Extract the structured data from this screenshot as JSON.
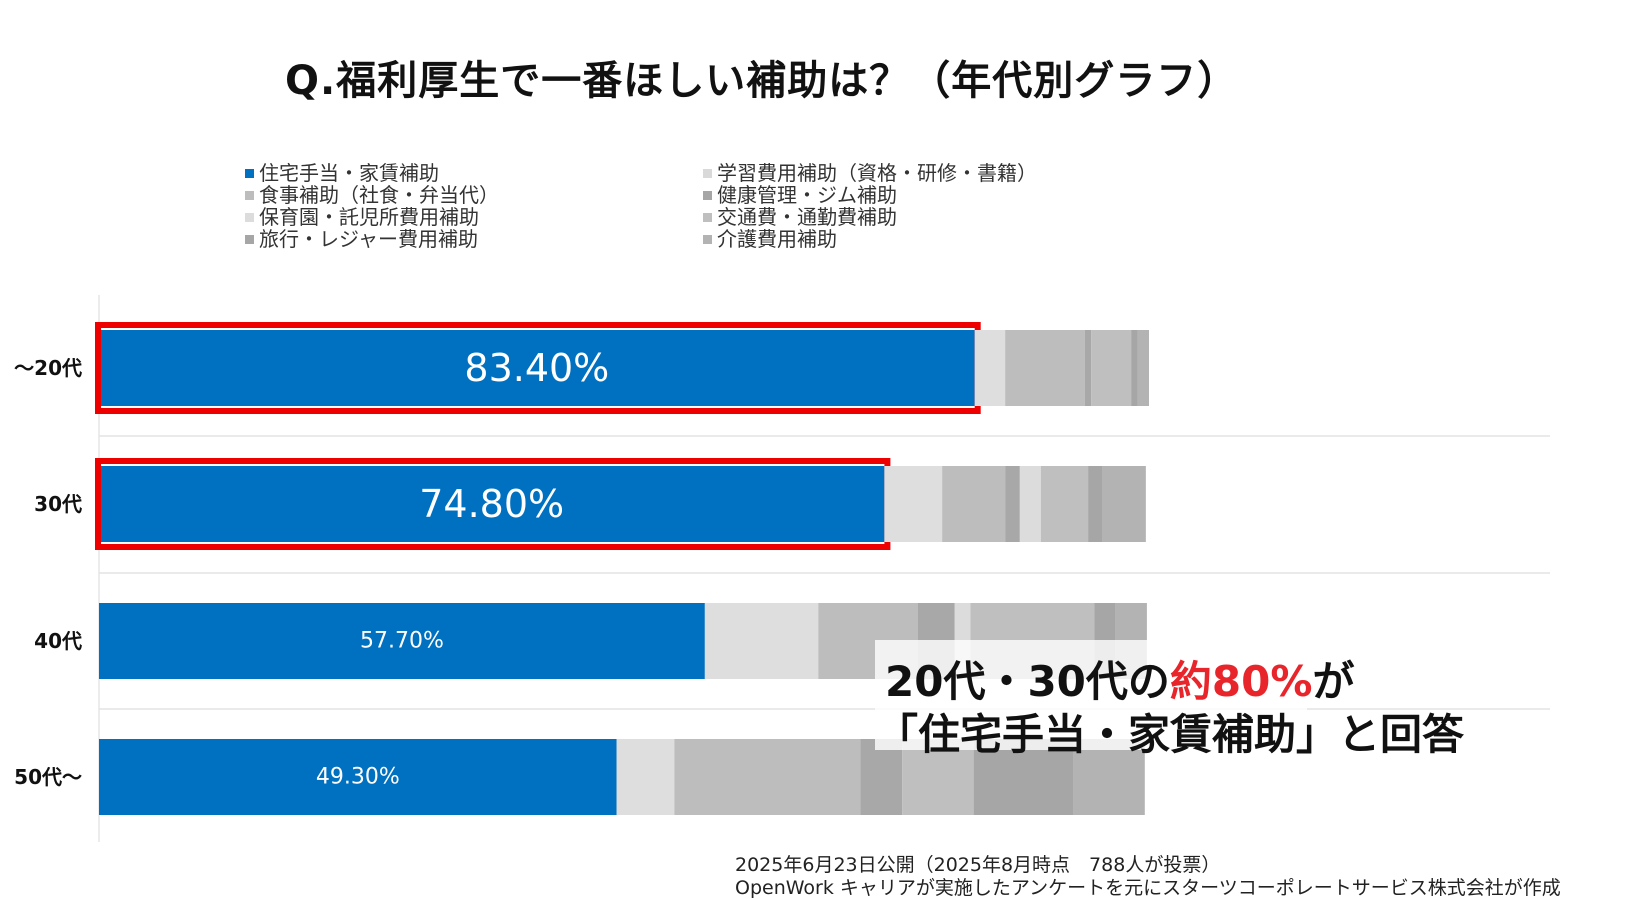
{
  "title": "Q.福利厚生で一番ほしい補助は？（年代別グラフ）",
  "legend_left": [
    {
      "label": "住宅手当・家賃補助",
      "color": "#0070c0"
    },
    {
      "label": "食事補助（社食・弁当代）",
      "color": "#bdbdbd"
    },
    {
      "label": "保育園・託児所費用補助",
      "color": "#dcdcdc"
    },
    {
      "label": "旅行・レジャー費用補助",
      "color": "#a6a6a6"
    }
  ],
  "legend_right": [
    {
      "label": "学習費用補助（資格・研修・書籍）",
      "color": "#d9d9d9"
    },
    {
      "label": "健康管理・ジム補助",
      "color": "#a6a6a6"
    },
    {
      "label": "交通費・通勤費補助",
      "color": "#bfbfbf"
    },
    {
      "label": "介護費用補助",
      "color": "#b3b3b3"
    }
  ],
  "chart_data": {
    "type": "bar",
    "orientation": "horizontal",
    "stacked": true,
    "categories": [
      "～20代",
      "30代",
      "40代",
      "50代～"
    ],
    "series": [
      {
        "name": "住宅手当・家賃補助",
        "color": "#0070c0",
        "values": [
          83.4,
          74.8,
          57.7,
          49.3
        ],
        "labels": [
          "83.40%",
          "74.80%",
          "57.70%",
          "49.30%"
        ]
      },
      {
        "name": "学習費用補助（資格・研修・書籍）",
        "color": "#dedede",
        "values": [
          2.9,
          5.5,
          10.8,
          5.5
        ]
      },
      {
        "name": "食事補助（社食・弁当代）",
        "color": "#bdbdbd",
        "values": [
          7.6,
          6.0,
          9.5,
          17.7
        ]
      },
      {
        "name": "健康管理・ジム補助",
        "color": "#a8a8a8",
        "values": [
          0.6,
          1.4,
          3.5,
          4.0
        ]
      },
      {
        "name": "保育園・託児所費用補助",
        "color": "#dcdcdc",
        "values": [
          0,
          2.0,
          1.5,
          0
        ]
      },
      {
        "name": "交通費・通勤費補助",
        "color": "#bfbfbf",
        "values": [
          3.8,
          4.5,
          11.8,
          6.8
        ]
      },
      {
        "name": "旅行・レジャー費用補助",
        "color": "#a6a6a6",
        "values": [
          0.6,
          1.4,
          2.0,
          9.5
        ]
      },
      {
        "name": "介護費用補助",
        "color": "#b3b3b3",
        "values": [
          1.1,
          4.1,
          3.0,
          6.8
        ]
      }
    ],
    "highlighted": [
      "～20代",
      "30代"
    ],
    "xlim": [
      0,
      100
    ],
    "grid": false
  },
  "callout": {
    "line1_pre": "20代・30代の",
    "line1_emph": "約80%",
    "line1_post": "が",
    "line2": "「住宅手当・家賃補助」と回答"
  },
  "footer": {
    "line1": "2025年6月23日公開（2025年8月時点　788人が投票）",
    "line2": "OpenWork キャリアが実施したアンケートを元にスターツコーポレートサービス株式会社が作成"
  }
}
